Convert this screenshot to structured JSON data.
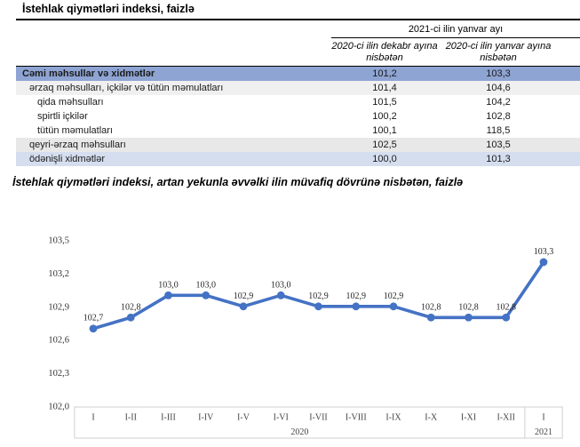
{
  "table_section": {
    "title": "İstehlak qiymətləri indeksi, faizlə",
    "header": {
      "span_label": "2021-ci ilin yanvar ayı",
      "col1": "2020-ci ilin dekabr ayına nisbətən",
      "col2": "2020-ci ilin yanvar ayına nisbətən"
    },
    "rows": [
      {
        "label": "Cəmi məhsullar və xidmətlər",
        "v1": "101,2",
        "v2": "103,3",
        "style": "total",
        "indent": 0
      },
      {
        "label": "ərzaq məhsulları, içkilər və tütün məmulatları",
        "v1": "101,4",
        "v2": "104,6",
        "style": "stripe-light",
        "indent": 1
      },
      {
        "label": "qida məhsulları",
        "v1": "101,5",
        "v2": "104,2",
        "style": "plain",
        "indent": 2
      },
      {
        "label": "spirtli içkilər",
        "v1": "100,2",
        "v2": "102,8",
        "style": "plain",
        "indent": 2
      },
      {
        "label": "tütün məmulatları",
        "v1": "100,1",
        "v2": "118,5",
        "style": "plain",
        "indent": 2
      },
      {
        "label": "qeyri-ərzaq məhsulları",
        "v1": "102,5",
        "v2": "103,5",
        "style": "stripe-gray",
        "indent": 1
      },
      {
        "label": "ödənişli xidmətlər",
        "v1": "100,0",
        "v2": "101,3",
        "style": "stripe-blue",
        "indent": 1
      }
    ],
    "colors": {
      "total_row_bg": "#8EA4D2",
      "stripe_light_bg": "#F0F0F0",
      "stripe_gray_bg": "#E8E8E8",
      "stripe_blue_bg": "#D5DEEF"
    }
  },
  "chart_section": {
    "title": "İstehlak qiymətləri indeksi, artan yekunla əvvəlki ilin müvafiq dövrünə nisbətən, faizlə"
  },
  "chart_data": {
    "type": "line",
    "title": "İstehlak qiymətləri indeksi, artan yekunla əvvəlki ilin müvafiq dövrünə nisbətən, faizlə",
    "categories": [
      "I",
      "I-II",
      "I-III",
      "I-IV",
      "I-V",
      "I-VI",
      "I-VII",
      "I-VIII",
      "I-IX",
      "I-X",
      "I-XI",
      "I-XII",
      "I"
    ],
    "values": [
      102.7,
      102.8,
      103.0,
      103.0,
      102.9,
      103.0,
      102.9,
      102.9,
      102.9,
      102.8,
      102.8,
      102.8,
      103.3
    ],
    "value_labels": [
      "102,7",
      "102,8",
      "103,0",
      "103,0",
      "102,9",
      "103,0",
      "102,9",
      "102,9",
      "102,9",
      "102,8",
      "102,8",
      "102,8",
      "103,3"
    ],
    "year_groups": [
      {
        "label": "2020",
        "span": 12
      },
      {
        "label": "2021",
        "span": 1
      }
    ],
    "y_ticks": [
      "103,5",
      "103,2",
      "102,9",
      "102,6",
      "102,3",
      "102,0"
    ],
    "ylim": [
      102.0,
      103.5
    ],
    "xlabel": "",
    "ylabel": "",
    "grid": false,
    "legend": "none",
    "line_color": "#4472C4"
  }
}
